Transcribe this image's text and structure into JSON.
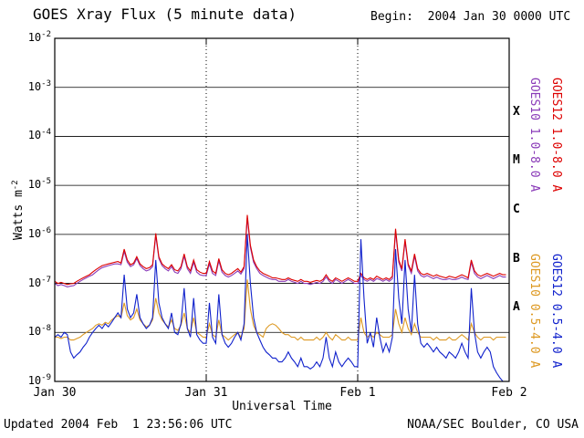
{
  "header": {
    "title": "GOES Xray Flux (5 minute data)",
    "begin": "Begin:  2004 Jan 30 0000 UTC"
  },
  "footer": {
    "updated": "Updated 2004 Feb  1 23:56:06 UTC",
    "credit": "NOAA/SEC Boulder, CO USA"
  },
  "axis": {
    "ylabel_base": "Watts m",
    "ylabel_exp": "-2",
    "xlabel": "Universal Time",
    "y_exponents": [
      -2,
      -3,
      -4,
      -5,
      -6,
      -7,
      -8,
      -9
    ],
    "flare_classes": [
      {
        "label": "X",
        "mid_exp": -3.5
      },
      {
        "label": "M",
        "mid_exp": -4.5
      },
      {
        "label": "C",
        "mid_exp": -5.5
      },
      {
        "label": "B",
        "mid_exp": -6.5
      },
      {
        "label": "A",
        "mid_exp": -7.5
      }
    ]
  },
  "legend": [
    {
      "label": "GOES10 1.0-8.0 A",
      "color": "#8a3bb8",
      "position": "inner-top"
    },
    {
      "label": "GOES12 1.0-8.0 A",
      "color": "#dd0000",
      "position": "outer-top"
    },
    {
      "label": "GOES10 0.5-4.0 A",
      "color": "#dd9922",
      "position": "inner-bottom"
    },
    {
      "label": "GOES12 0.5-4.0 A",
      "color": "#1122cc",
      "position": "outer-bottom"
    }
  ],
  "chart_data": {
    "type": "line",
    "title": "GOES Xray Flux (5 minute data)",
    "xlabel": "Universal Time",
    "ylabel": "Watts m-2",
    "y_scale": "log",
    "ylim": [
      1e-09,
      0.01
    ],
    "x_unit": "hours since 2004 Jan 30 0000 UTC",
    "x_start": 0,
    "x_step": 0.5,
    "x_range": [
      0,
      72
    ],
    "x_ticks": [
      {
        "label": "Jan 30",
        "hour": 0
      },
      {
        "label": "Jan 31",
        "hour": 24
      },
      {
        "label": "Feb 1",
        "hour": 48
      },
      {
        "label": "Feb 2",
        "hour": 72
      }
    ],
    "day_boundaries_hours": [
      24,
      48
    ],
    "series": [
      {
        "name": "GOES10 1.0-8.0 A",
        "color": "#8a3bb8",
        "values": [
          1e-07,
          9e-08,
          9.5e-08,
          9e-08,
          8.5e-08,
          8.8e-08,
          9e-08,
          1e-07,
          1.1e-07,
          1.2e-07,
          1.3e-07,
          1.4e-07,
          1.5e-07,
          1.7e-07,
          1.9e-07,
          2.1e-07,
          2.2e-07,
          2.3e-07,
          2.4e-07,
          2.5e-07,
          2.5e-07,
          2.4e-07,
          4.5e-07,
          2.7e-07,
          2.2e-07,
          2.4e-07,
          3.2e-07,
          2.3e-07,
          2e-07,
          1.8e-07,
          1.9e-07,
          2.2e-07,
          9.5e-07,
          3.2e-07,
          2.3e-07,
          2e-07,
          1.8e-07,
          2.2e-07,
          1.7e-07,
          1.6e-07,
          2e-07,
          3.6e-07,
          2e-07,
          1.6e-07,
          2.7e-07,
          1.7e-07,
          1.5e-07,
          1.45e-07,
          1.45e-07,
          2.5e-07,
          1.6e-07,
          1.45e-07,
          2.9e-07,
          1.7e-07,
          1.45e-07,
          1.35e-07,
          1.45e-07,
          1.6e-07,
          1.8e-07,
          1.55e-07,
          2e-07,
          2.2e-06,
          5.4e-07,
          2.7e-07,
          2e-07,
          1.6e-07,
          1.45e-07,
          1.35e-07,
          1.25e-07,
          1.2e-07,
          1.2e-07,
          1.1e-07,
          1.1e-07,
          1.1e-07,
          1.2e-07,
          1.1e-07,
          1.05e-07,
          1e-07,
          1.1e-07,
          1e-07,
          1e-07,
          9.5e-08,
          1e-07,
          1.05e-07,
          1e-07,
          1.1e-07,
          1.35e-07,
          1.1e-07,
          1e-07,
          1.2e-07,
          1.1e-07,
          1e-07,
          1.1e-07,
          1.2e-07,
          1.1e-07,
          1e-07,
          1e-07,
          1.45e-07,
          1.2e-07,
          1.1e-07,
          1.2e-07,
          1.1e-07,
          1.25e-07,
          1.2e-07,
          1.1e-07,
          1.2e-07,
          1.1e-07,
          1.25e-07,
          1.15e-06,
          2.7e-07,
          1.8e-07,
          7.2e-07,
          2.3e-07,
          1.6e-07,
          3.6e-07,
          1.8e-07,
          1.45e-07,
          1.35e-07,
          1.45e-07,
          1.35e-07,
          1.25e-07,
          1.35e-07,
          1.25e-07,
          1.2e-07,
          1.2e-07,
          1.25e-07,
          1.2e-07,
          1.2e-07,
          1.25e-07,
          1.35e-07,
          1.25e-07,
          1.2e-07,
          2.7e-07,
          1.6e-07,
          1.35e-07,
          1.25e-07,
          1.35e-07,
          1.45e-07,
          1.35e-07,
          1.25e-07,
          1.35e-07,
          1.45e-07,
          1.35e-07,
          1.35e-07
        ]
      },
      {
        "name": "GOES10 0.5-4.0 A",
        "color": "#dd9922",
        "values": [
          8e-09,
          8e-09,
          7.5e-09,
          8e-09,
          8e-09,
          7e-09,
          7e-09,
          7.5e-09,
          8e-09,
          9e-09,
          1e-08,
          1.1e-08,
          1.2e-08,
          1.4e-08,
          1.5e-08,
          1.4e-08,
          1.6e-08,
          1.5e-08,
          1.8e-08,
          2e-08,
          2.2e-08,
          2e-08,
          4e-08,
          2.2e-08,
          1.8e-08,
          2e-08,
          3e-08,
          1.8e-08,
          1.5e-08,
          1.3e-08,
          1.4e-08,
          1.8e-08,
          5e-08,
          2.5e-08,
          1.8e-08,
          1.5e-08,
          1.3e-08,
          1.8e-08,
          1.2e-08,
          1.1e-08,
          1.4e-08,
          2.5e-08,
          1.2e-08,
          1e-08,
          2e-08,
          1e-08,
          9e-09,
          8e-09,
          8e-09,
          1.5e-08,
          9e-09,
          8e-09,
          1.8e-08,
          9e-09,
          8e-09,
          7e-09,
          8e-09,
          9e-09,
          1e-08,
          8e-09,
          1.2e-08,
          1.2e-07,
          3e-08,
          1.4e-08,
          1e-08,
          9e-09,
          8e-09,
          1.2e-08,
          1.4e-08,
          1.5e-08,
          1.4e-08,
          1.2e-08,
          1e-08,
          9e-09,
          9e-09,
          8e-09,
          8e-09,
          7e-09,
          8e-09,
          7e-09,
          7e-09,
          7e-09,
          7e-09,
          8e-09,
          7e-09,
          8e-09,
          1e-08,
          8e-09,
          7e-09,
          9e-09,
          8e-09,
          7e-09,
          7e-09,
          8e-09,
          7e-09,
          7e-09,
          7e-09,
          2e-08,
          1e-08,
          8e-09,
          9e-09,
          8e-09,
          1e-08,
          9e-09,
          8e-09,
          8e-09,
          8e-09,
          9e-09,
          3e-08,
          1.5e-08,
          1e-08,
          2e-08,
          1.2e-08,
          9e-09,
          1.5e-08,
          1e-08,
          8e-09,
          8e-09,
          8e-09,
          8e-09,
          7e-09,
          8e-09,
          7e-09,
          7e-09,
          7e-09,
          8e-09,
          7e-09,
          7e-09,
          8e-09,
          9e-09,
          8e-09,
          7e-09,
          1.5e-08,
          1e-08,
          8e-09,
          7e-09,
          8e-09,
          8e-09,
          8e-09,
          7e-09,
          8e-09,
          8e-09,
          8e-09,
          8e-09
        ]
      },
      {
        "name": "GOES12 1.0-8.0 A",
        "color": "#dd0000",
        "values": [
          1.1e-07,
          1e-07,
          1.05e-07,
          1e-07,
          9.5e-08,
          9.8e-08,
          1e-07,
          1.1e-07,
          1.2e-07,
          1.3e-07,
          1.4e-07,
          1.5e-07,
          1.7e-07,
          1.9e-07,
          2.1e-07,
          2.3e-07,
          2.4e-07,
          2.5e-07,
          2.6e-07,
          2.7e-07,
          2.8e-07,
          2.6e-07,
          5e-07,
          3e-07,
          2.4e-07,
          2.6e-07,
          3.5e-07,
          2.5e-07,
          2.2e-07,
          2e-07,
          2.1e-07,
          2.4e-07,
          1.05e-06,
          3.5e-07,
          2.5e-07,
          2.2e-07,
          2e-07,
          2.4e-07,
          1.9e-07,
          1.8e-07,
          2.2e-07,
          4e-07,
          2.2e-07,
          1.8e-07,
          3e-07,
          1.9e-07,
          1.7e-07,
          1.6e-07,
          1.6e-07,
          2.8e-07,
          1.8e-07,
          1.6e-07,
          3.2e-07,
          1.9e-07,
          1.6e-07,
          1.5e-07,
          1.6e-07,
          1.8e-07,
          2e-07,
          1.7e-07,
          2.2e-07,
          2.5e-06,
          6e-07,
          3e-07,
          2.2e-07,
          1.8e-07,
          1.6e-07,
          1.5e-07,
          1.4e-07,
          1.3e-07,
          1.3e-07,
          1.25e-07,
          1.2e-07,
          1.2e-07,
          1.3e-07,
          1.2e-07,
          1.15e-07,
          1.1e-07,
          1.2e-07,
          1.1e-07,
          1.1e-07,
          1.05e-07,
          1.1e-07,
          1.15e-07,
          1.1e-07,
          1.2e-07,
          1.5e-07,
          1.2e-07,
          1.1e-07,
          1.3e-07,
          1.2e-07,
          1.1e-07,
          1.2e-07,
          1.3e-07,
          1.2e-07,
          1.1e-07,
          1.1e-07,
          1.6e-07,
          1.3e-07,
          1.2e-07,
          1.3e-07,
          1.2e-07,
          1.4e-07,
          1.3e-07,
          1.2e-07,
          1.3e-07,
          1.2e-07,
          1.4e-07,
          1.3e-06,
          3e-07,
          2e-07,
          8e-07,
          2.5e-07,
          1.8e-07,
          4e-07,
          2e-07,
          1.6e-07,
          1.5e-07,
          1.6e-07,
          1.5e-07,
          1.4e-07,
          1.5e-07,
          1.4e-07,
          1.35e-07,
          1.3e-07,
          1.4e-07,
          1.35e-07,
          1.3e-07,
          1.4e-07,
          1.5e-07,
          1.4e-07,
          1.3e-07,
          3e-07,
          1.8e-07,
          1.5e-07,
          1.4e-07,
          1.5e-07,
          1.6e-07,
          1.5e-07,
          1.4e-07,
          1.5e-07,
          1.6e-07,
          1.5e-07,
          1.5e-07
        ]
      },
      {
        "name": "GOES12 0.5-4.0 A",
        "color": "#1122cc",
        "values": [
          8e-09,
          9e-09,
          8e-09,
          1e-08,
          9e-09,
          4e-09,
          3e-09,
          3.5e-09,
          4e-09,
          5e-09,
          6e-09,
          8e-09,
          1e-08,
          1.2e-08,
          1.4e-08,
          1.2e-08,
          1.5e-08,
          1.3e-08,
          1.6e-08,
          2e-08,
          2.5e-08,
          2e-08,
          1.5e-07,
          3e-08,
          2e-08,
          2.5e-08,
          6e-08,
          2e-08,
          1.5e-08,
          1.2e-08,
          1.4e-08,
          2e-08,
          3e-07,
          4e-08,
          2e-08,
          1.5e-08,
          1.2e-08,
          2.5e-08,
          1e-08,
          9e-09,
          1.5e-08,
          8e-08,
          1.2e-08,
          8e-09,
          5e-08,
          9e-09,
          7e-09,
          6e-09,
          6e-09,
          4e-08,
          8e-09,
          6e-09,
          6e-08,
          9e-09,
          6e-09,
          5e-09,
          6e-09,
          8e-09,
          1e-08,
          7e-09,
          1.5e-08,
          1e-06,
          1e-07,
          2e-08,
          1e-08,
          7e-09,
          5e-09,
          4e-09,
          3.5e-09,
          3e-09,
          3e-09,
          2.5e-09,
          2.5e-09,
          3e-09,
          4e-09,
          3e-09,
          2.5e-09,
          2e-09,
          3e-09,
          2e-09,
          2e-09,
          1.8e-09,
          2e-09,
          2.5e-09,
          2e-09,
          3e-09,
          8e-09,
          3e-09,
          2e-09,
          4e-09,
          2.5e-09,
          2e-09,
          2.5e-09,
          3e-09,
          2.5e-09,
          2e-09,
          2e-09,
          8e-07,
          5e-08,
          6e-09,
          1e-08,
          5e-09,
          2e-08,
          8e-09,
          4e-09,
          6e-09,
          4e-09,
          8e-09,
          5e-07,
          5e-08,
          1.5e-08,
          3e-07,
          3e-08,
          1e-08,
          1.5e-07,
          1.5e-08,
          6e-09,
          5e-09,
          6e-09,
          5e-09,
          4e-09,
          5e-09,
          4e-09,
          3.5e-09,
          3e-09,
          4e-09,
          3.5e-09,
          3e-09,
          4e-09,
          6e-09,
          4e-09,
          3e-09,
          8e-08,
          1e-08,
          4e-09,
          3e-09,
          4e-09,
          5e-09,
          4e-09,
          2e-09,
          1.5e-09,
          1.2e-09,
          1e-09,
          1e-09
        ]
      }
    ]
  }
}
